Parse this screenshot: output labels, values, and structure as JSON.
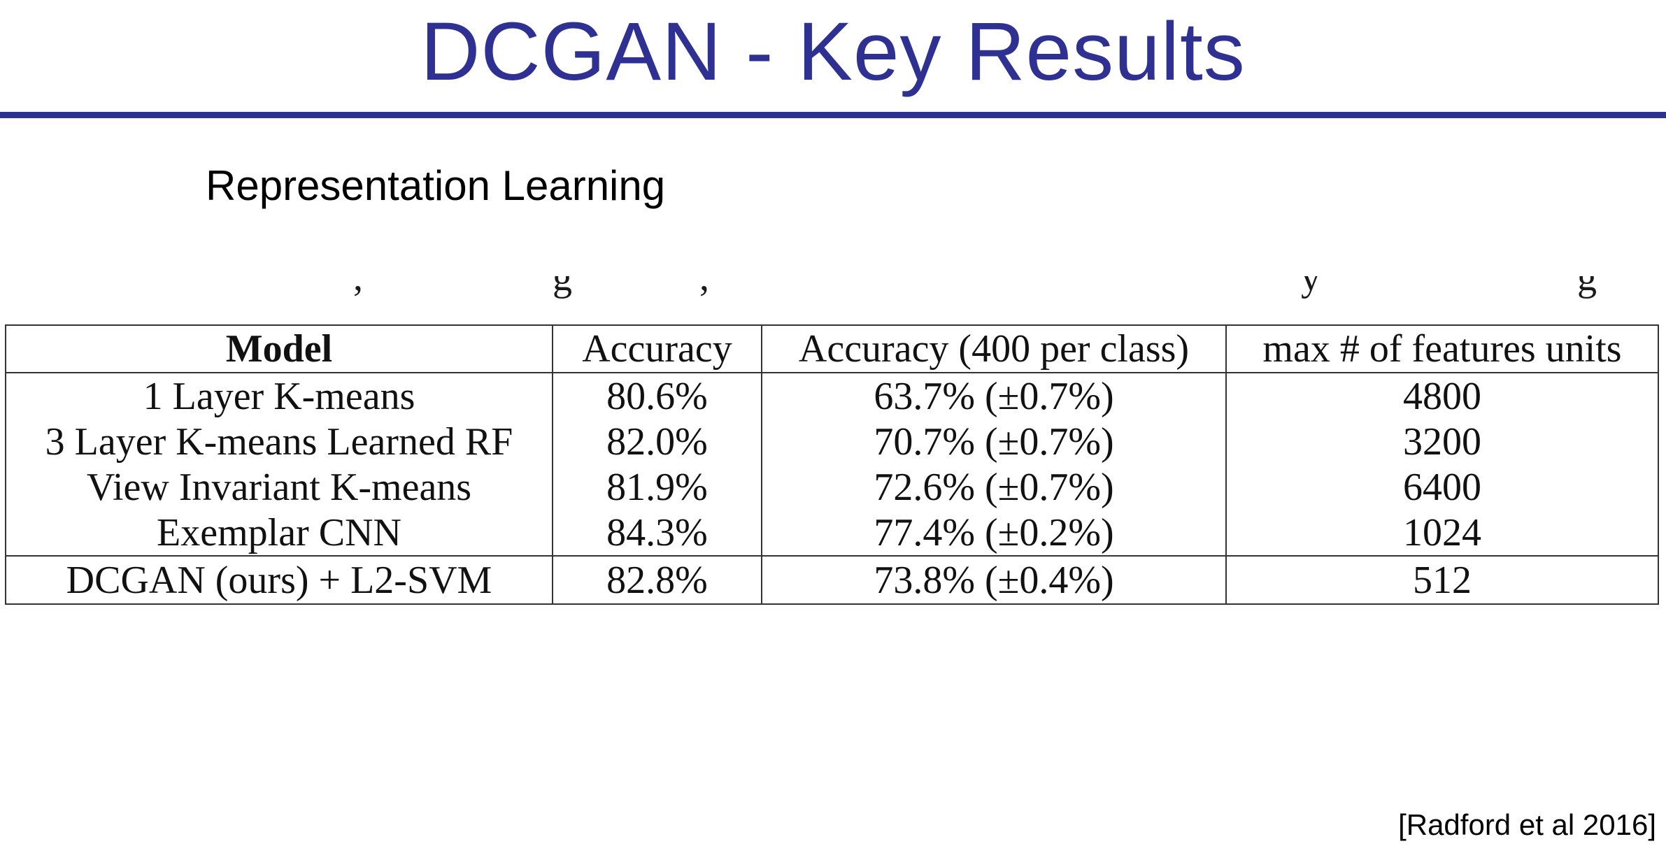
{
  "slide": {
    "title": "DCGAN - Key Results",
    "subtitle": "Representation Learning",
    "citation": "[Radford et al 2016]"
  },
  "colors": {
    "title": "#2e3192",
    "rule": "#2e3192",
    "text": "#000000"
  },
  "table": {
    "headers": [
      "Model",
      "Accuracy",
      "Accuracy (400 per class)",
      "max # of features units"
    ],
    "rows": [
      [
        "1 Layer K-means",
        "80.6%",
        "63.7% (±0.7%)",
        "4800"
      ],
      [
        "3 Layer K-means Learned RF",
        "82.0%",
        "70.7% (±0.7%)",
        "3200"
      ],
      [
        "View Invariant K-means",
        "81.9%",
        "72.6% (±0.7%)",
        "6400"
      ],
      [
        "Exemplar CNN",
        "84.3%",
        "77.4% (±0.2%)",
        "1024"
      ],
      [
        "DCGAN (ours) + L2-SVM",
        "82.8%",
        "73.8% (±0.4%)",
        "512"
      ]
    ]
  }
}
